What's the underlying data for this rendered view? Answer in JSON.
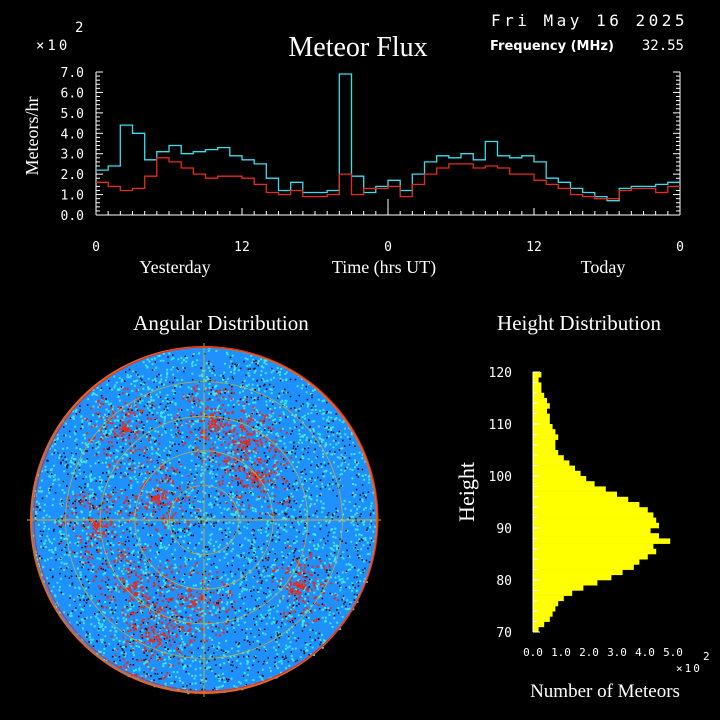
{
  "header": {
    "title": "Meteor Flux",
    "date": "Fri May 16 2025",
    "frequency_label": "Frequency (MHz)",
    "frequency_value": "32.55"
  },
  "flux": {
    "multiplier_base": "×10",
    "multiplier_exp": "2",
    "ylabel": "Meteors/hr",
    "xlabel_left": "Yesterday",
    "xlabel_center": "Time (hrs UT)",
    "xlabel_right": "Today",
    "yticks": [
      "0.0",
      "1.0",
      "2.0",
      "3.0",
      "4.0",
      "5.0",
      "6.0",
      "7.0"
    ],
    "xticks": [
      "0",
      "12",
      "0",
      "12",
      "0"
    ]
  },
  "angular": {
    "title": "Angular Distribution"
  },
  "height_dist": {
    "title": "Height Distribution",
    "ylabel": "Height",
    "xlabel": "Number of Meteors",
    "multiplier_base": "×10",
    "multiplier_exp": "2",
    "yticks": [
      "70",
      "80",
      "90",
      "100",
      "110",
      "120"
    ],
    "xticks": [
      "0.0",
      "1.0",
      "2.0",
      "3.0",
      "4.0",
      "5.0"
    ]
  },
  "colors": {
    "background": "#000000",
    "cyan_series": "#33e0f0",
    "red_series": "#e82a1a",
    "histogram": "#ffff00",
    "grid": "#d4b020",
    "axis": "#ffffff"
  },
  "chart_data": [
    {
      "type": "line",
      "title": "Meteor Flux",
      "ylabel": "Meteors/hr",
      "xlabel": "Time (hrs UT)",
      "ylim": [
        0,
        7.0
      ],
      "xlim": [
        0,
        48
      ],
      "units_multiplier": 100,
      "step": true,
      "series": [
        {
          "color": "#33e0f0",
          "x": [
            0,
            1,
            2,
            3,
            4,
            5,
            6,
            7,
            8,
            9,
            10,
            11,
            12,
            13,
            14,
            15,
            16,
            17,
            18,
            19,
            20,
            21,
            22,
            23,
            24,
            25,
            26,
            27,
            28,
            29,
            30,
            31,
            32,
            33,
            34,
            35,
            36,
            37,
            38,
            39,
            40,
            41,
            42,
            43,
            44,
            45,
            46,
            47
          ],
          "values": [
            2.2,
            2.4,
            4.4,
            4.0,
            2.7,
            3.1,
            3.4,
            3.0,
            3.1,
            3.2,
            3.3,
            2.9,
            2.7,
            2.5,
            1.8,
            1.2,
            1.6,
            1.1,
            1.1,
            1.2,
            6.9,
            1.9,
            1.1,
            1.4,
            1.7,
            1.2,
            2.0,
            2.6,
            2.9,
            2.8,
            3.0,
            2.7,
            3.6,
            2.9,
            2.8,
            2.9,
            2.6,
            1.8,
            1.6,
            1.3,
            1.1,
            0.9,
            0.7,
            1.3,
            1.4,
            1.4,
            1.5,
            1.6
          ]
        },
        {
          "color": "#e82a1a",
          "x": [
            0,
            1,
            2,
            3,
            4,
            5,
            6,
            7,
            8,
            9,
            10,
            11,
            12,
            13,
            14,
            15,
            16,
            17,
            18,
            19,
            20,
            21,
            22,
            23,
            24,
            25,
            26,
            27,
            28,
            29,
            30,
            31,
            32,
            33,
            34,
            35,
            36,
            37,
            38,
            39,
            40,
            41,
            42,
            43,
            44,
            45,
            46,
            47
          ],
          "values": [
            1.6,
            1.4,
            1.2,
            1.3,
            1.9,
            2.8,
            2.6,
            2.3,
            2.0,
            1.8,
            1.9,
            1.9,
            1.8,
            1.5,
            1.1,
            1.0,
            1.2,
            0.9,
            0.9,
            1.0,
            2.0,
            1.0,
            1.3,
            1.3,
            1.4,
            0.9,
            1.5,
            2.0,
            2.3,
            2.5,
            2.5,
            2.3,
            2.4,
            2.3,
            2.0,
            2.0,
            1.7,
            1.5,
            1.3,
            1.0,
            0.9,
            0.8,
            0.8,
            1.2,
            1.3,
            1.3,
            1.1,
            1.4
          ]
        }
      ]
    },
    {
      "type": "scatter",
      "title": "Angular Distribution",
      "note_series": [
        "cyan",
        "red"
      ]
    },
    {
      "type": "bar",
      "title": "Height Distribution",
      "xlabel": "Number of Meteors",
      "ylabel": "Height",
      "ylim": [
        70,
        120
      ],
      "xlim": [
        0,
        5.0
      ],
      "units_multiplier": 100,
      "orientation": "horizontal",
      "categories": [
        70,
        71,
        72,
        73,
        74,
        75,
        76,
        77,
        78,
        79,
        80,
        81,
        82,
        83,
        84,
        85,
        86,
        87,
        88,
        89,
        90,
        91,
        92,
        93,
        94,
        95,
        96,
        97,
        98,
        99,
        100,
        101,
        102,
        103,
        104,
        105,
        106,
        107,
        108,
        109,
        110,
        111,
        112,
        113,
        114,
        115,
        116,
        117,
        118,
        119
      ],
      "values": [
        0.2,
        0.4,
        0.6,
        0.7,
        0.8,
        0.9,
        1.1,
        1.4,
        1.8,
        2.3,
        2.8,
        3.2,
        3.6,
        3.8,
        4.1,
        4.4,
        4.3,
        4.9,
        4.5,
        4.2,
        4.5,
        4.4,
        4.3,
        4.1,
        3.8,
        3.4,
        3.0,
        2.6,
        2.2,
        1.9,
        1.7,
        1.5,
        1.3,
        1.1,
        0.9,
        0.8,
        0.8,
        0.9,
        0.8,
        0.7,
        0.6,
        0.6,
        0.5,
        0.6,
        0.5,
        0.4,
        0.3,
        0.3,
        0.2,
        0.3
      ]
    }
  ]
}
